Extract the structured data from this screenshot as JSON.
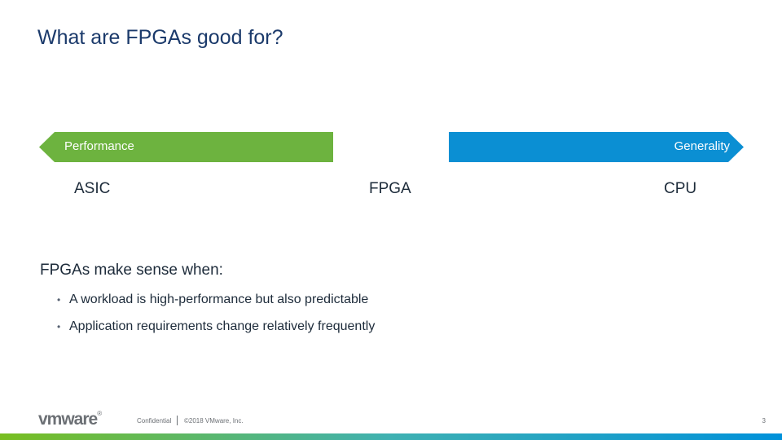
{
  "slide": {
    "title": "What are FPGAs good for?"
  },
  "spectrum": {
    "left_arrow_label": "Performance",
    "right_arrow_label": "Generality",
    "chips": [
      "ASIC",
      "FPGA",
      "CPU"
    ]
  },
  "content": {
    "subhead": "FPGAs make sense when:",
    "bullet_glyph": "•",
    "bullets": [
      "A workload is high-performance but also predictable",
      "Application requirements change relatively frequently"
    ]
  },
  "footer": {
    "logo": "vmware",
    "logo_suffix": "®",
    "confidential": "Confidential",
    "copyright": "©2018 VMware, Inc.",
    "page_number": "3"
  },
  "colors": {
    "performance_arrow": "#6db33f",
    "generality_arrow": "#0b8fd3",
    "title": "#1b3a6b"
  }
}
